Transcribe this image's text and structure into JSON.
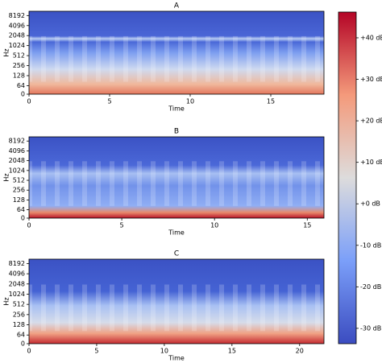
{
  "chart_data": [
    {
      "type": "spectrogram",
      "title": "A",
      "xlabel": "Time",
      "ylabel": "Hz",
      "xlim": [
        0,
        18.3
      ],
      "xticks": [
        0,
        5,
        10,
        15
      ],
      "ylim": [
        0,
        11025
      ],
      "yscale": "symlog",
      "linthresh": 64,
      "yticks": [
        0,
        64,
        128,
        256,
        512,
        1024,
        2048,
        4096,
        8192
      ]
    },
    {
      "type": "spectrogram",
      "title": "B",
      "xlabel": "Time",
      "ylabel": "Hz",
      "xlim": [
        0,
        15.9
      ],
      "xticks": [
        0,
        5,
        10,
        15
      ],
      "ylim": [
        0,
        11025
      ],
      "yscale": "symlog",
      "linthresh": 64,
      "yticks": [
        0,
        64,
        128,
        256,
        512,
        1024,
        2048,
        4096,
        8192
      ]
    },
    {
      "type": "spectrogram",
      "title": "C",
      "xlabel": "Time",
      "ylabel": "Hz",
      "xlim": [
        0,
        21.8
      ],
      "xticks": [
        0,
        5,
        10,
        15,
        20
      ],
      "ylim": [
        0,
        11025
      ],
      "yscale": "symlog",
      "linthresh": 64,
      "yticks": [
        0,
        64,
        128,
        256,
        512,
        1024,
        2048,
        4096,
        8192
      ]
    },
    {
      "type": "colorbar",
      "ylim": [
        -33.7,
        46.2
      ],
      "yticks": [
        {
          "value": 40,
          "label": "+40 dB"
        },
        {
          "value": 30,
          "label": "+30 dB"
        },
        {
          "value": 20,
          "label": "+20 dB"
        },
        {
          "value": 10,
          "label": "+10 dB"
        },
        {
          "value": 0,
          "label": "+0 dB"
        },
        {
          "value": -10,
          "label": "-10 dB"
        },
        {
          "value": -20,
          "label": "-20 dB"
        },
        {
          "value": -30,
          "label": "-30 dB"
        }
      ]
    }
  ]
}
